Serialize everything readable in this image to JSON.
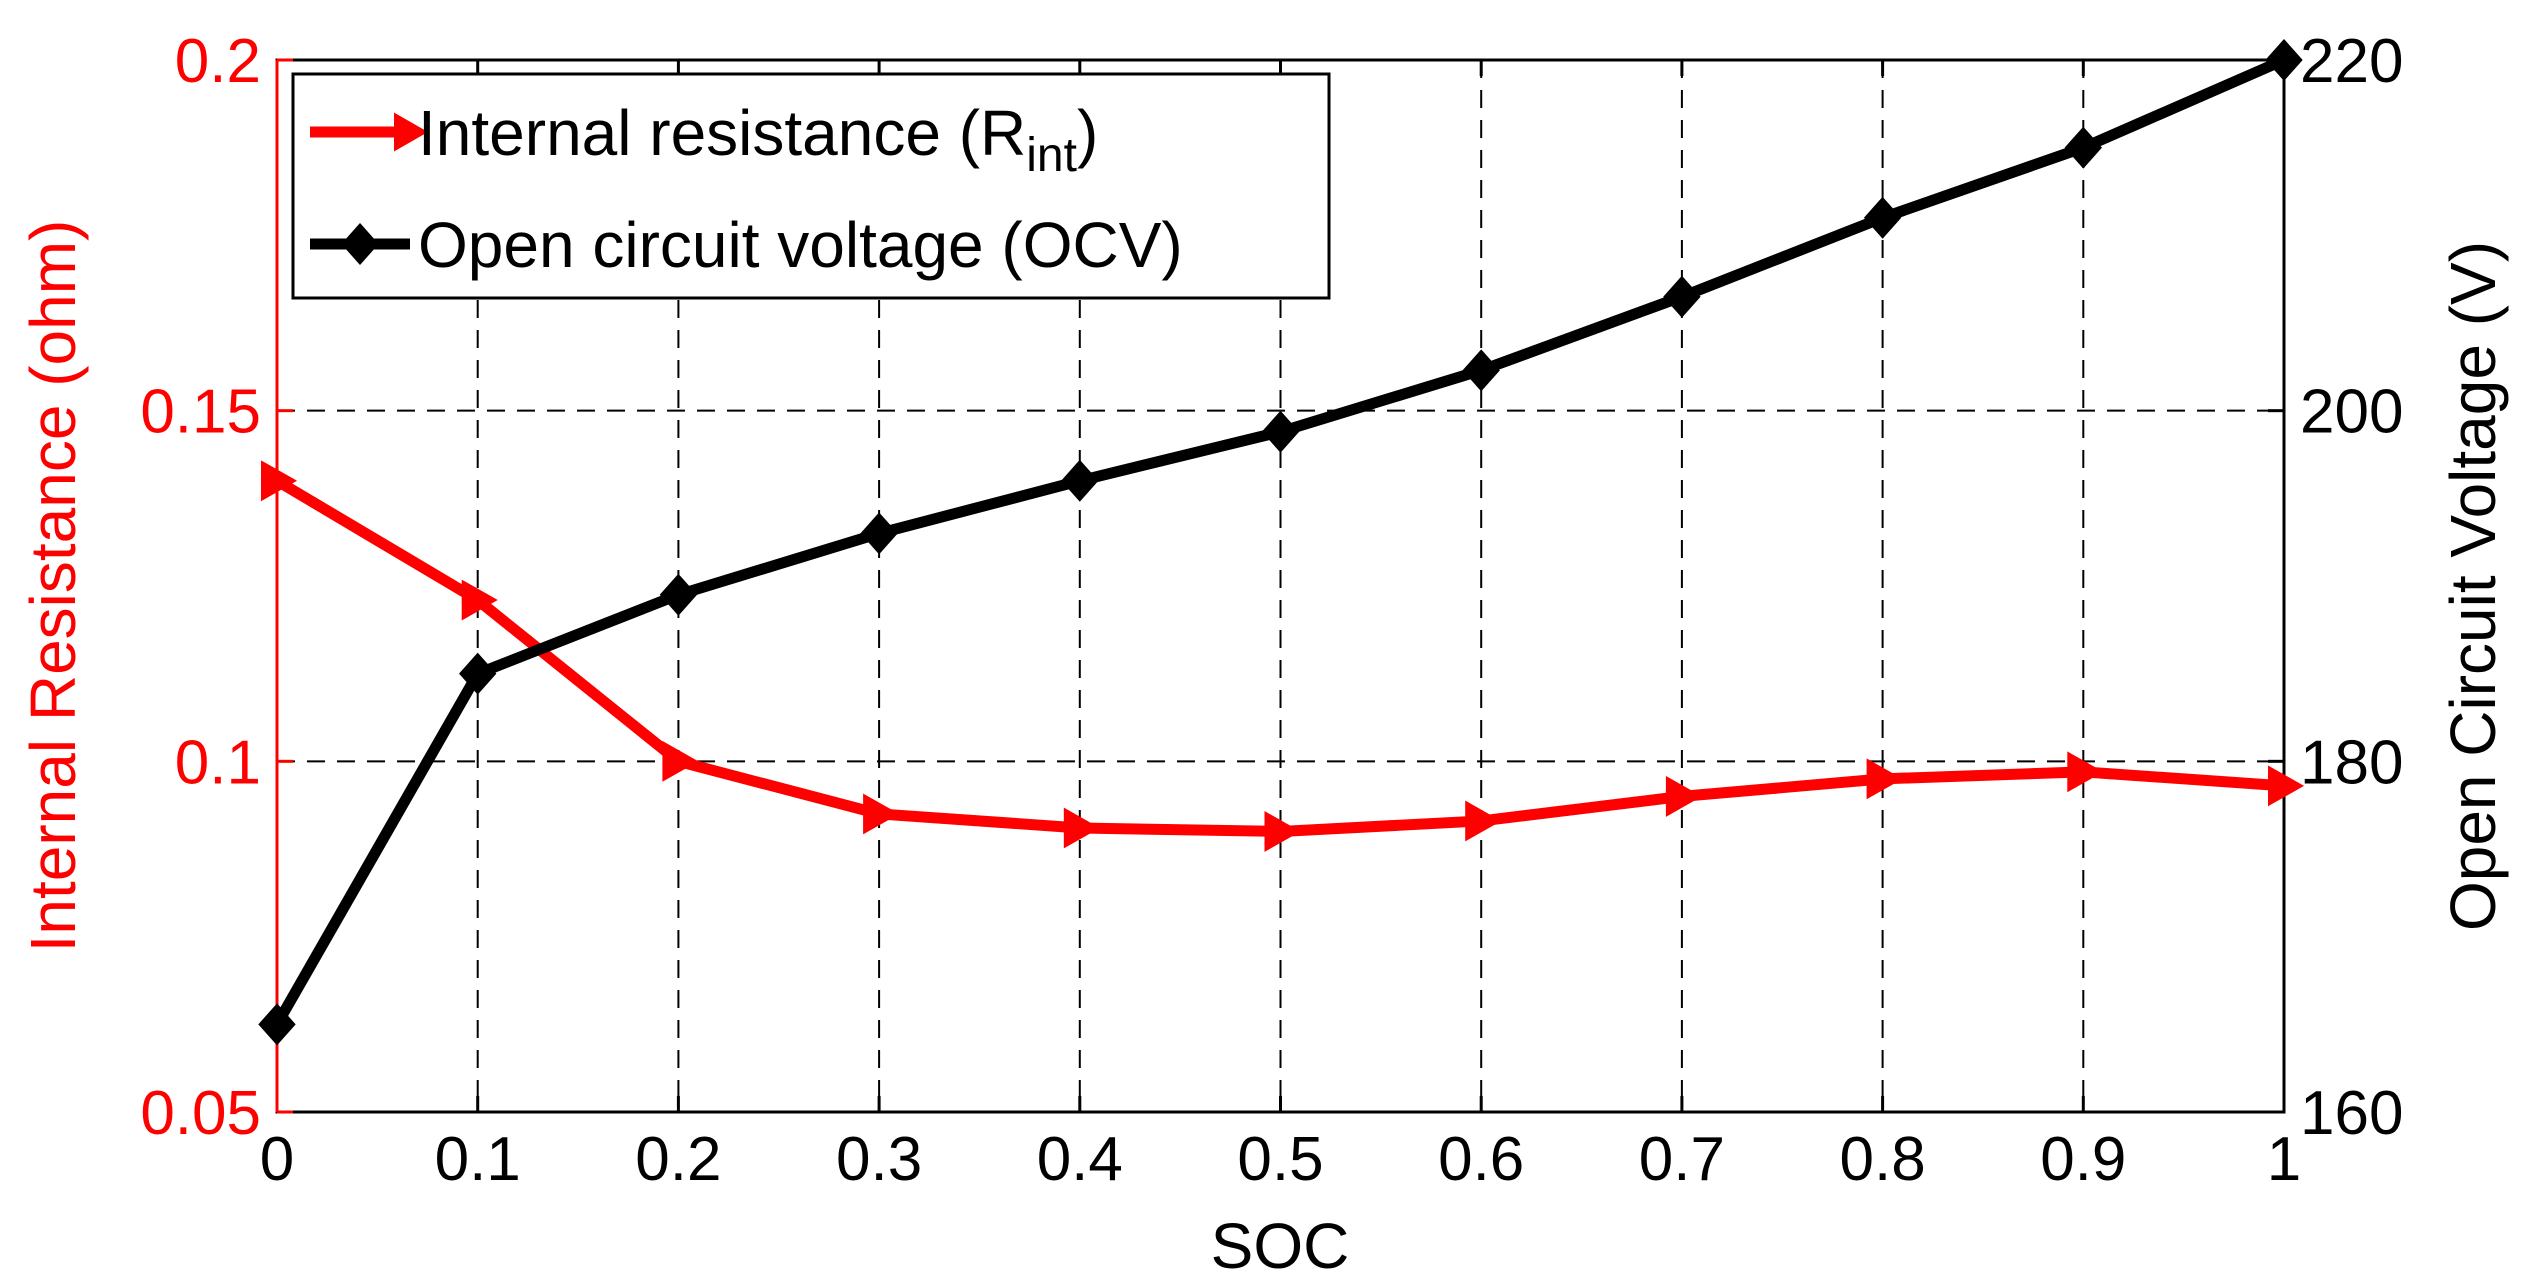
{
  "chart_data": {
    "type": "line",
    "x": [
      0,
      0.1,
      0.2,
      0.3,
      0.4,
      0.5,
      0.6,
      0.7,
      0.8,
      0.9,
      1
    ],
    "x_ticks": [
      "0",
      "0.1",
      "0.2",
      "0.3",
      "0.4",
      "0.5",
      "0.6",
      "0.7",
      "0.8",
      "0.9",
      "1"
    ],
    "xlabel": "SOC",
    "xlim": [
      0,
      1
    ],
    "y_left": {
      "label": "Internal Resistance (ohm)",
      "lim": [
        0.05,
        0.2
      ],
      "ticks": [
        "0.05",
        "0.1",
        "0.15",
        "0.2"
      ],
      "tick_values": [
        0.05,
        0.1,
        0.15,
        0.2
      ],
      "color": "#ff0000"
    },
    "y_right": {
      "label": "Open Circuit Voltage (V)",
      "lim": [
        160,
        220
      ],
      "ticks": [
        "160",
        "180",
        "200",
        "220"
      ],
      "tick_values": [
        160,
        180,
        200,
        220
      ],
      "color": "#000000"
    },
    "grid": true,
    "legend_position": "top-left",
    "series": [
      {
        "name": "Internal resistance (R",
        "name_subscript": "int",
        "name_suffix": ")",
        "axis": "left",
        "color": "#ff0000",
        "marker": "triangle-right",
        "values": [
          0.14,
          0.123,
          0.1,
          0.0925,
          0.0905,
          0.09,
          0.0915,
          0.095,
          0.0975,
          0.0985,
          0.0965
        ]
      },
      {
        "name": "Open circuit voltage (OCV)",
        "axis": "right",
        "color": "#000000",
        "marker": "diamond",
        "values": [
          165,
          185,
          189.5,
          193,
          196,
          198.8,
          202.3,
          206.5,
          211,
          215,
          220
        ]
      }
    ]
  }
}
